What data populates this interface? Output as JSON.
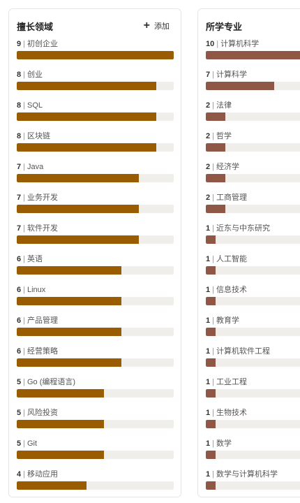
{
  "colors": {
    "skills_bar": "#995c00",
    "majors_bar": "#8f5745",
    "track": "#f0eeea"
  },
  "skills": {
    "title": "擅长领域",
    "add_label": "添加",
    "add_icon": "plus-icon",
    "max": 9,
    "items": [
      {
        "count": "9",
        "label": "初创企业"
      },
      {
        "count": "8",
        "label": "创业"
      },
      {
        "count": "8",
        "label": "SQL"
      },
      {
        "count": "8",
        "label": "区块链"
      },
      {
        "count": "7",
        "label": "Java"
      },
      {
        "count": "7",
        "label": "业务开发"
      },
      {
        "count": "7",
        "label": "软件开发"
      },
      {
        "count": "6",
        "label": "英语"
      },
      {
        "count": "6",
        "label": "Linux"
      },
      {
        "count": "6",
        "label": "产品管理"
      },
      {
        "count": "6",
        "label": "经营策略"
      },
      {
        "count": "5",
        "label": "Go (编程语言)"
      },
      {
        "count": "5",
        "label": "风险投资"
      },
      {
        "count": "5",
        "label": "Git"
      },
      {
        "count": "4",
        "label": "移动应用"
      }
    ]
  },
  "majors": {
    "title": "所学专业",
    "max": 10,
    "items": [
      {
        "count": "10",
        "label": "计算机科学"
      },
      {
        "count": "7",
        "label": "计算科学"
      },
      {
        "count": "2",
        "label": "法律"
      },
      {
        "count": "2",
        "label": "哲学"
      },
      {
        "count": "2",
        "label": "经济学"
      },
      {
        "count": "2",
        "label": "工商管理"
      },
      {
        "count": "1",
        "label": "近东与中东研究"
      },
      {
        "count": "1",
        "label": "人工智能"
      },
      {
        "count": "1",
        "label": "信息技术"
      },
      {
        "count": "1",
        "label": "教育学"
      },
      {
        "count": "1",
        "label": "计算机软件工程"
      },
      {
        "count": "1",
        "label": "工业工程"
      },
      {
        "count": "1",
        "label": "生物技术"
      },
      {
        "count": "1",
        "label": "数学"
      },
      {
        "count": "1",
        "label": "数学与计算机科学"
      }
    ]
  }
}
